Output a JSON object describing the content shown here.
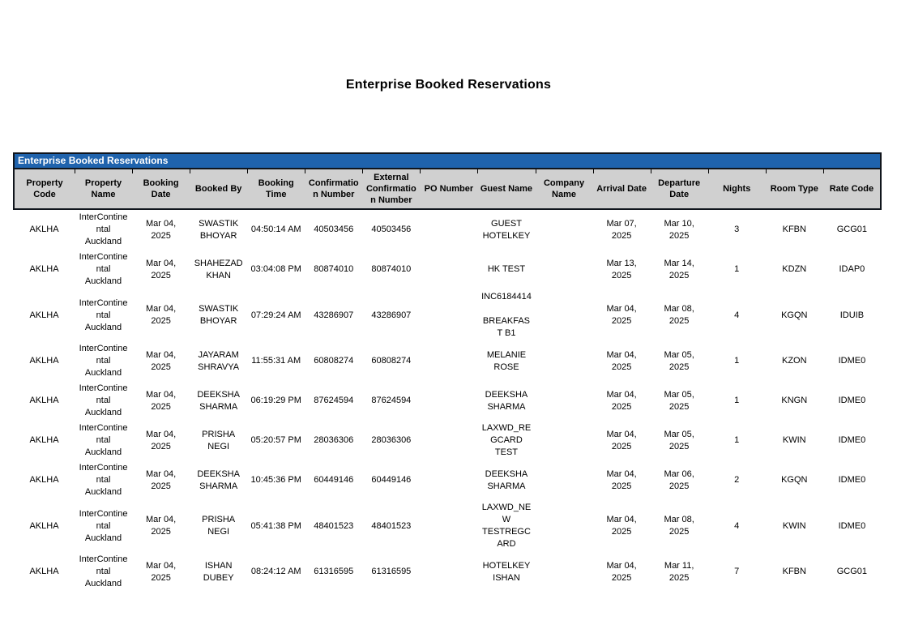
{
  "page": {
    "title": "Enterprise Booked Reservations"
  },
  "report": {
    "banner_title": "Enterprise Booked Reservations",
    "colors": {
      "banner_bg": "#1f63ad",
      "banner_text": "#ffffff",
      "header_bg": "#d0d0d0",
      "border": "#10151c"
    },
    "columns": [
      {
        "key": "property_code",
        "label": "Property Code"
      },
      {
        "key": "property_name",
        "label": "Property Name"
      },
      {
        "key": "booking_date",
        "label": "Booking Date"
      },
      {
        "key": "booked_by",
        "label": "Booked By"
      },
      {
        "key": "booking_time",
        "label": "Booking Time"
      },
      {
        "key": "confirmation_number",
        "label": "Confirmation Number"
      },
      {
        "key": "external_confirmation_number",
        "label": "External Confirmation Number"
      },
      {
        "key": "po_number",
        "label": "PO Number"
      },
      {
        "key": "guest_name",
        "label": "Guest Name"
      },
      {
        "key": "company_name",
        "label": "Company Name"
      },
      {
        "key": "arrival_date",
        "label": "Arrival Date"
      },
      {
        "key": "departure_date",
        "label": "Departure Date"
      },
      {
        "key": "nights",
        "label": "Nights"
      },
      {
        "key": "room_type",
        "label": "Room Type"
      },
      {
        "key": "rate_code",
        "label": "Rate Code"
      }
    ],
    "rows": [
      {
        "property_code": "AKLHA",
        "property_name": "InterContinental Auckland",
        "booking_date": "Mar 04, 2025",
        "booked_by": "SWASTIK BHOYAR",
        "booking_time": "04:50:14 AM",
        "confirmation_number": "40503456",
        "external_confirmation_number": "40503456",
        "po_number": "",
        "guest_name": "GUEST HOTELKEY",
        "company_name": "",
        "arrival_date": "Mar 07, 2025",
        "departure_date": "Mar 10, 2025",
        "nights": "3",
        "room_type": "KFBN",
        "rate_code": "GCG01"
      },
      {
        "property_code": "AKLHA",
        "property_name": "InterContinental Auckland",
        "booking_date": "Mar 04, 2025",
        "booked_by": "SHAHEZAD KHAN",
        "booking_time": "03:04:08 PM",
        "confirmation_number": "80874010",
        "external_confirmation_number": "80874010",
        "po_number": "",
        "guest_name": "HK TEST",
        "company_name": "",
        "arrival_date": "Mar 13, 2025",
        "departure_date": "Mar 14, 2025",
        "nights": "1",
        "room_type": "KDZN",
        "rate_code": "IDAP0"
      },
      {
        "property_code": "AKLHA",
        "property_name": "InterContinental Auckland",
        "booking_date": "Mar 04, 2025",
        "booked_by": "SWASTIK BHOYAR",
        "booking_time": "07:29:24 AM",
        "confirmation_number": "43286907",
        "external_confirmation_number": "43286907",
        "po_number": "",
        "guest_name": "INC6184414\n\nBREAKFAST B1",
        "company_name": "",
        "arrival_date": "Mar 04, 2025",
        "departure_date": "Mar 08, 2025",
        "nights": "4",
        "room_type": "KGQN",
        "rate_code": "IDUIB"
      },
      {
        "property_code": "AKLHA",
        "property_name": "InterContinental Auckland",
        "booking_date": "Mar 04, 2025",
        "booked_by": "JAYARAM SHRAVYA",
        "booking_time": "11:55:31 AM",
        "confirmation_number": "60808274",
        "external_confirmation_number": "60808274",
        "po_number": "",
        "guest_name": "MELANIE ROSE",
        "company_name": "",
        "arrival_date": "Mar 04, 2025",
        "departure_date": "Mar 05, 2025",
        "nights": "1",
        "room_type": "KZON",
        "rate_code": "IDME0"
      },
      {
        "property_code": "AKLHA",
        "property_name": "InterContinental Auckland",
        "booking_date": "Mar 04, 2025",
        "booked_by": "DEEKSHA SHARMA",
        "booking_time": "06:19:29 PM",
        "confirmation_number": "87624594",
        "external_confirmation_number": "87624594",
        "po_number": "",
        "guest_name": "DEEKSHA SHARMA",
        "company_name": "",
        "arrival_date": "Mar 04, 2025",
        "departure_date": "Mar 05, 2025",
        "nights": "1",
        "room_type": "KNGN",
        "rate_code": "IDME0"
      },
      {
        "property_code": "AKLHA",
        "property_name": "InterContinental Auckland",
        "booking_date": "Mar 04, 2025",
        "booked_by": "PRISHA NEGI",
        "booking_time": "05:20:57 PM",
        "confirmation_number": "28036306",
        "external_confirmation_number": "28036306",
        "po_number": "",
        "guest_name": "LAXWD_REGCARD TEST",
        "company_name": "",
        "arrival_date": "Mar 04, 2025",
        "departure_date": "Mar 05, 2025",
        "nights": "1",
        "room_type": "KWIN",
        "rate_code": "IDME0"
      },
      {
        "property_code": "AKLHA",
        "property_name": "InterContinental Auckland",
        "booking_date": "Mar 04, 2025",
        "booked_by": "DEEKSHA SHARMA",
        "booking_time": "10:45:36 PM",
        "confirmation_number": "60449146",
        "external_confirmation_number": "60449146",
        "po_number": "",
        "guest_name": "DEEKSHA SHARMA",
        "company_name": "",
        "arrival_date": "Mar 04, 2025",
        "departure_date": "Mar 06, 2025",
        "nights": "2",
        "room_type": "KGQN",
        "rate_code": "IDME0"
      },
      {
        "property_code": "AKLHA",
        "property_name": "InterContinental Auckland",
        "booking_date": "Mar 04, 2025",
        "booked_by": "PRISHA NEGI",
        "booking_time": "05:41:38 PM",
        "confirmation_number": "48401523",
        "external_confirmation_number": "48401523",
        "po_number": "",
        "guest_name": "LAXWD_NEW TESTREGCARD",
        "company_name": "",
        "arrival_date": "Mar 04, 2025",
        "departure_date": "Mar 08, 2025",
        "nights": "4",
        "room_type": "KWIN",
        "rate_code": "IDME0"
      },
      {
        "property_code": "AKLHA",
        "property_name": "InterContinental Auckland",
        "booking_date": "Mar 04, 2025",
        "booked_by": "ISHAN DUBEY",
        "booking_time": "08:24:12 AM",
        "confirmation_number": "61316595",
        "external_confirmation_number": "61316595",
        "po_number": "",
        "guest_name": "HOTELKEY ISHAN",
        "company_name": "",
        "arrival_date": "Mar 04, 2025",
        "departure_date": "Mar 11, 2025",
        "nights": "7",
        "room_type": "KFBN",
        "rate_code": "GCG01"
      }
    ]
  }
}
